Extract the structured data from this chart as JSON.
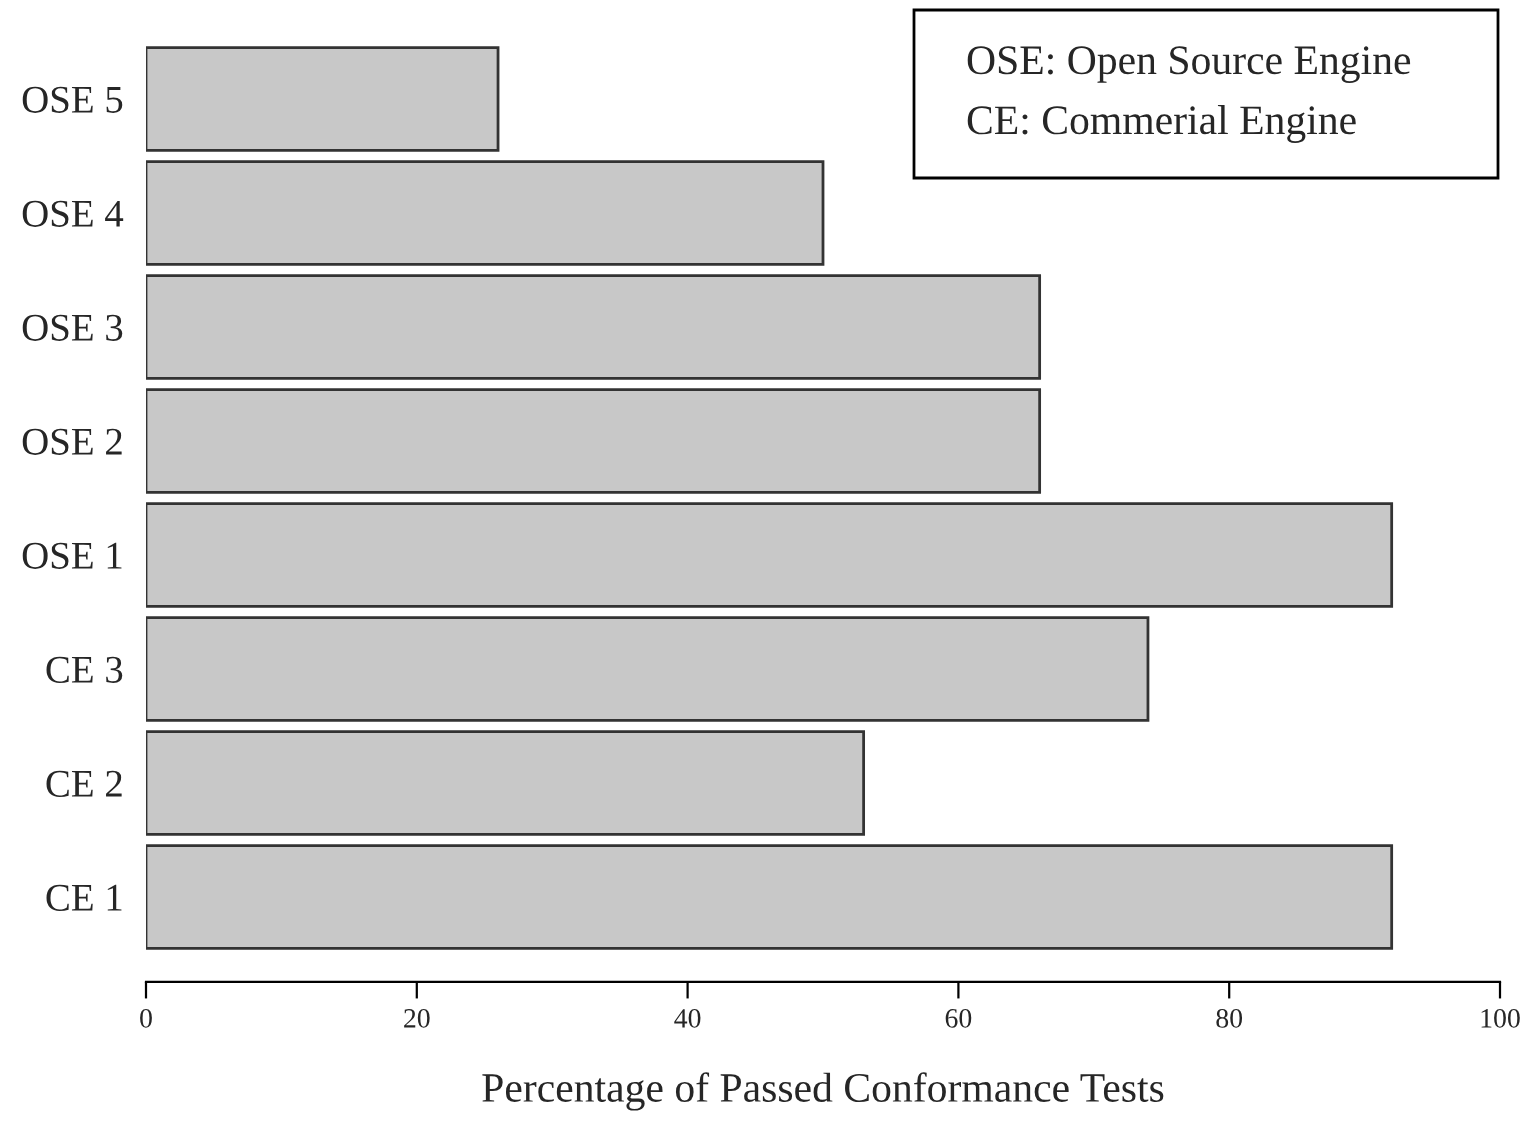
{
  "chart_data": {
    "type": "bar",
    "orientation": "horizontal",
    "xlabel": "Percentage of Passed Conformance Tests",
    "categories": [
      "OSE 5",
      "OSE 4",
      "OSE 3",
      "OSE 2",
      "OSE 1",
      "CE 3",
      "CE 2",
      "CE 1"
    ],
    "values": [
      26,
      50,
      66,
      66,
      92,
      74,
      53,
      92
    ],
    "color": "#c8c8c8",
    "xlim": [
      0,
      100
    ],
    "xticks": [
      0,
      20,
      40,
      60,
      80,
      100
    ],
    "grid": false,
    "legend": false,
    "annotations": [
      "OSE: Open Source Engine",
      "CE: Commerial Engine"
    ]
  }
}
